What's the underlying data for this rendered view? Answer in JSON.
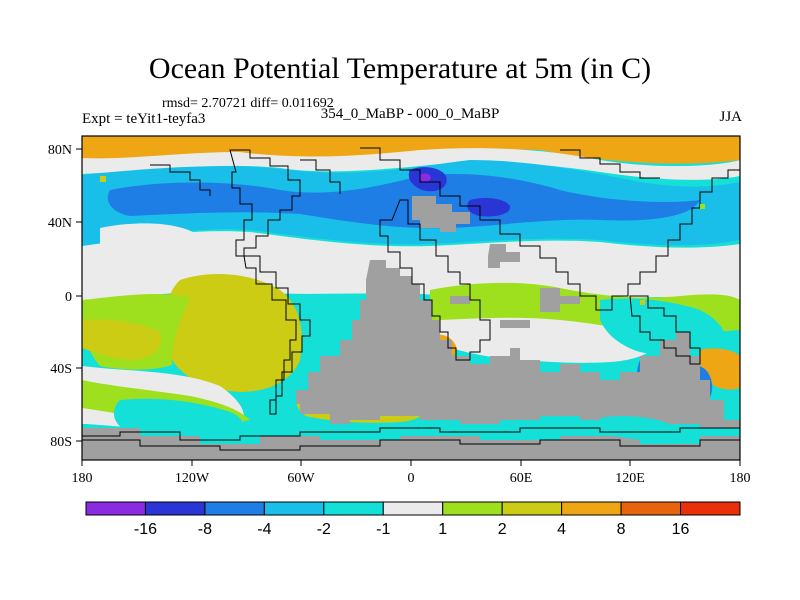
{
  "title": "Ocean Potential Temperature at 5m (in C)",
  "stats": "rmsd= 2.70721  diff= 0.011692",
  "experiment": "Expt = teYit1-teyfa3",
  "subtitle": "354_0_MaBP - 000_0_MaBP",
  "season": "JJA",
  "map": {
    "lon_range": [
      -180,
      180
    ],
    "lat_range": [
      -90,
      90
    ],
    "x_ticks": [
      "180",
      "120W",
      "60W",
      "0",
      "60E",
      "120E",
      "180"
    ],
    "y_ticks": [
      "80N",
      "40N",
      "0",
      "40S",
      "80S"
    ],
    "land_color": "#a0a0a0",
    "palette": {
      "lt-16": "#8a2be2",
      "-16to-8": "#2a35d6",
      "-8to-4": "#1f7ee6",
      "-4to-2": "#19bfe8",
      "-2to-1": "#14e0d8",
      "-1to1": "#ebebeb",
      "1to2": "#9fe01e",
      "2to4": "#cccc14",
      "4to8": "#eea614",
      "8to16": "#e8640c",
      "gt16": "#e8300a"
    }
  },
  "colorbar": {
    "colors": [
      "#8a2be2",
      "#2a35d6",
      "#1f7ee6",
      "#19bfe8",
      "#14e0d8",
      "#ebebeb",
      "#9fe01e",
      "#cccc14",
      "#eea614",
      "#e8640c",
      "#e8300a"
    ],
    "labels": [
      "-16",
      "-8",
      "-4",
      "-2",
      "-1",
      "1",
      "2",
      "4",
      "8",
      "16"
    ]
  }
}
